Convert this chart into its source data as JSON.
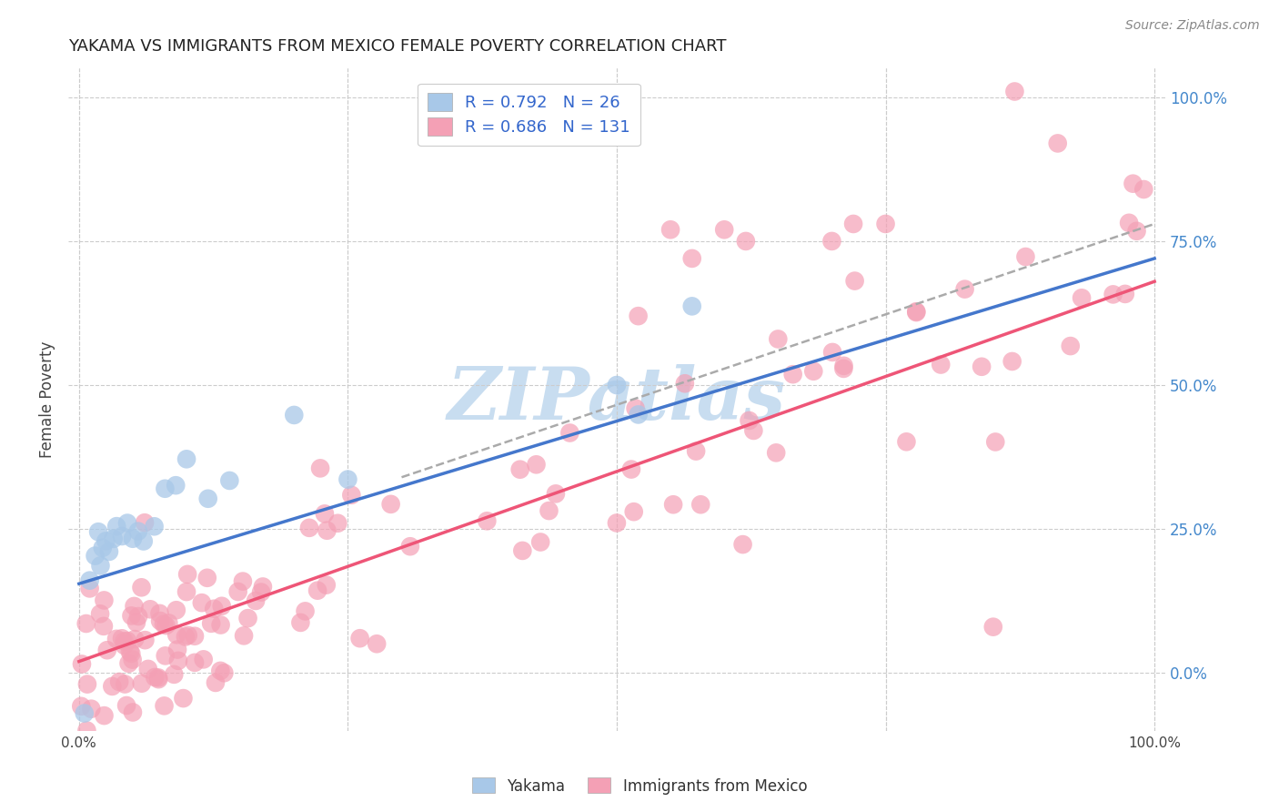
{
  "title": "YAKAMA VS IMMIGRANTS FROM MEXICO FEMALE POVERTY CORRELATION CHART",
  "source": "Source: ZipAtlas.com",
  "ylabel": "Female Poverty",
  "background_color": "#ffffff",
  "grid_color": "#cccccc",
  "title_color": "#222222",
  "right_axis_label_color": "#4488cc",
  "yakama_color": "#a8c8e8",
  "mexico_color": "#f4a0b5",
  "yakama_line_color": "#4477cc",
  "mexico_line_color": "#ee5577",
  "dashed_line_color": "#aaaaaa",
  "watermark": "ZIPatlas",
  "watermark_color": "#c8ddf0",
  "legend_label_color": "#3366cc",
  "legend_entries": [
    {
      "label": "R = 0.792   N = 26",
      "color": "#a8c8e8"
    },
    {
      "label": "R = 0.686   N = 131",
      "color": "#f4a0b5"
    }
  ],
  "xlim": [
    0.0,
    1.0
  ],
  "ylim": [
    -0.1,
    1.05
  ],
  "yticks": [
    0.0,
    0.25,
    0.5,
    0.75,
    1.0
  ],
  "yakama_line": {
    "x0": 0.0,
    "y0": 0.155,
    "x1": 1.0,
    "y1": 0.72
  },
  "mexico_line": {
    "x0": 0.0,
    "y0": 0.02,
    "x1": 1.0,
    "y1": 0.68
  },
  "dashed_line": {
    "x0": 0.3,
    "y0": 0.34,
    "x1": 1.0,
    "y1": 0.78
  }
}
